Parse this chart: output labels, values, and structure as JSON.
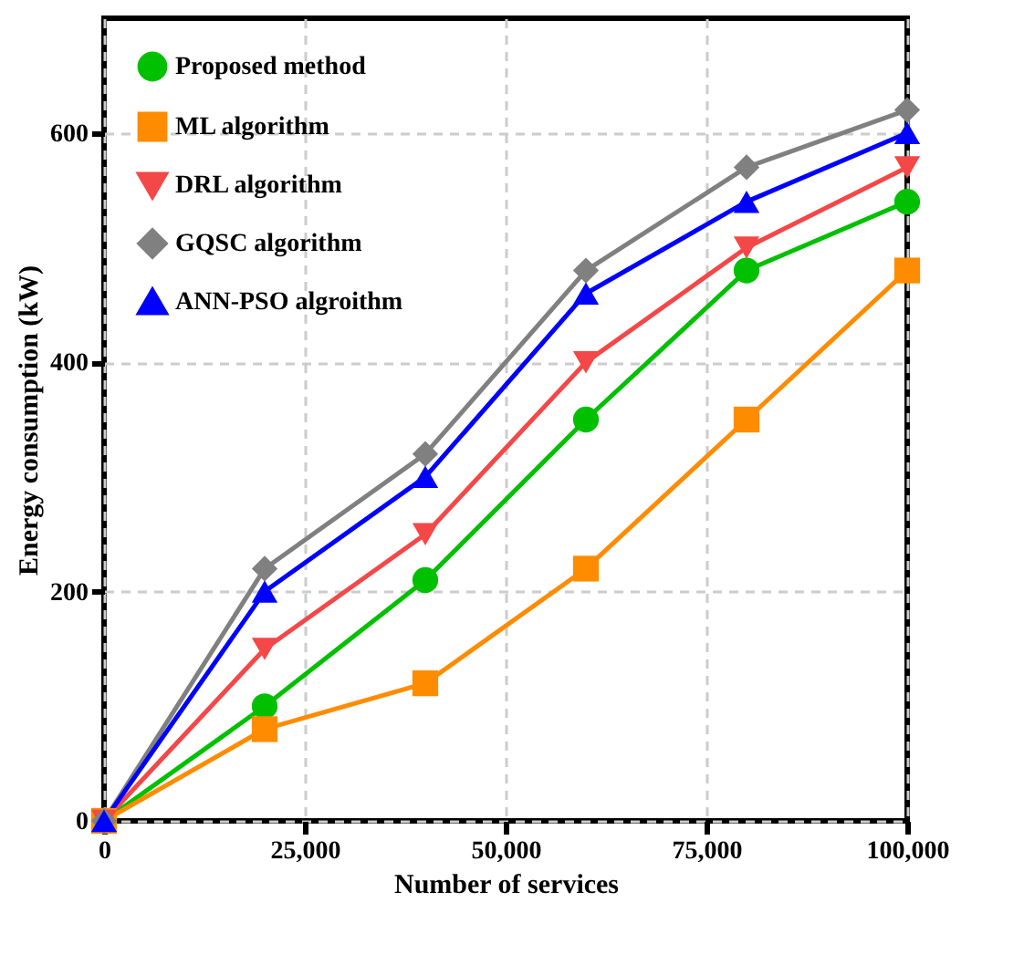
{
  "chart_data": {
    "type": "line",
    "xlabel": "Number of services",
    "ylabel": "Energy consumption (kW)",
    "x": [
      0,
      20000,
      40000,
      60000,
      80000,
      100000
    ],
    "xlim": [
      0,
      100000
    ],
    "xticks": [
      {
        "value": 0,
        "label": "0"
      },
      {
        "value": 25000,
        "label": "25,000"
      },
      {
        "value": 50000,
        "label": "50,000"
      },
      {
        "value": 75000,
        "label": "75,000"
      },
      {
        "value": 100000,
        "label": "100,000"
      }
    ],
    "ylim": [
      0,
      700
    ],
    "yticks": [
      0,
      200,
      400,
      600
    ],
    "grid": true,
    "legend": "top left",
    "line_style": "solid",
    "series": [
      {
        "name": "Proposed method",
        "color": "#00c000",
        "marker": "circle",
        "values": [
          0,
          100,
          210,
          350,
          480,
          540
        ]
      },
      {
        "name": "ML algorithm",
        "color": "#ff8c00",
        "marker": "square",
        "values": [
          0,
          80,
          120,
          220,
          350,
          480
        ]
      },
      {
        "name": "DRL algorithm",
        "color": "#f44848",
        "marker": "triangle-down",
        "values": [
          0,
          150,
          250,
          400,
          500,
          570
        ]
      },
      {
        "name": "GQSC algorithm",
        "color": "#808080",
        "marker": "diamond",
        "values": [
          0,
          220,
          320,
          480,
          570,
          620
        ]
      },
      {
        "name": "ANN-PSO algroithm",
        "color": "#0000ff",
        "marker": "triangle-up",
        "values": [
          0,
          200,
          300,
          460,
          540,
          600
        ]
      }
    ]
  }
}
